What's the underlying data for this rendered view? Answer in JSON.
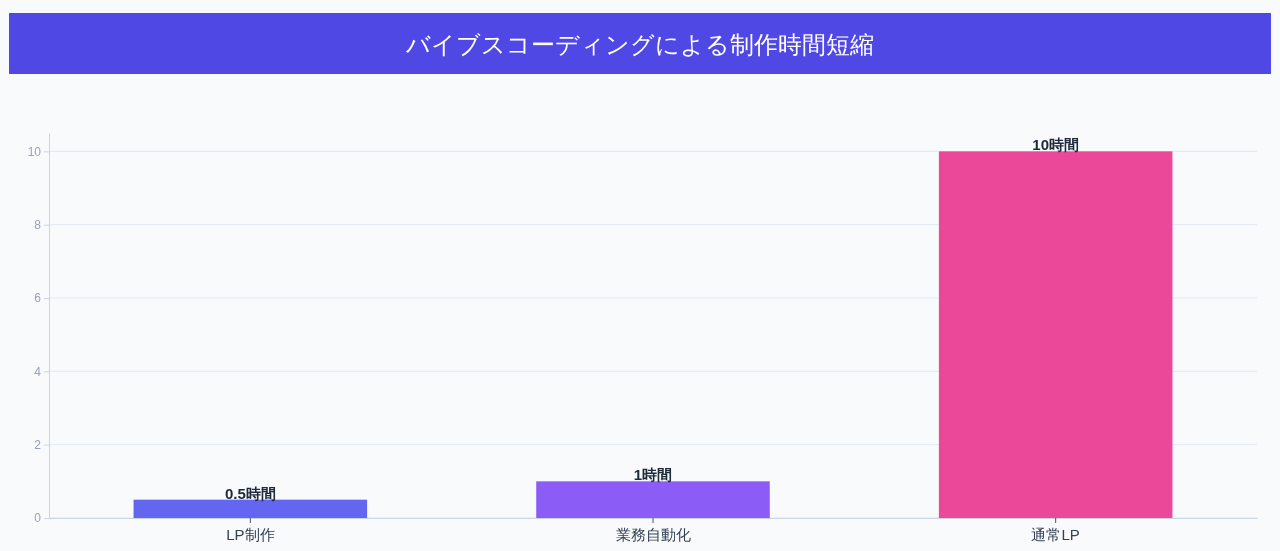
{
  "chart_data": {
    "type": "bar",
    "title": "バイブスコーディングによる制作時間短縮",
    "categories": [
      "LP制作",
      "業務自動化",
      "通常LP"
    ],
    "values": [
      0.5,
      1,
      10
    ],
    "colors": [
      "#6366f1",
      "#8b5cf6",
      "#ec4899"
    ],
    "value_labels": [
      "0.5時間",
      "1時間",
      "10時間"
    ],
    "ylim": [
      0,
      10.5
    ],
    "yticks": [
      0,
      2,
      4,
      6,
      8,
      10
    ],
    "grid": "y"
  }
}
